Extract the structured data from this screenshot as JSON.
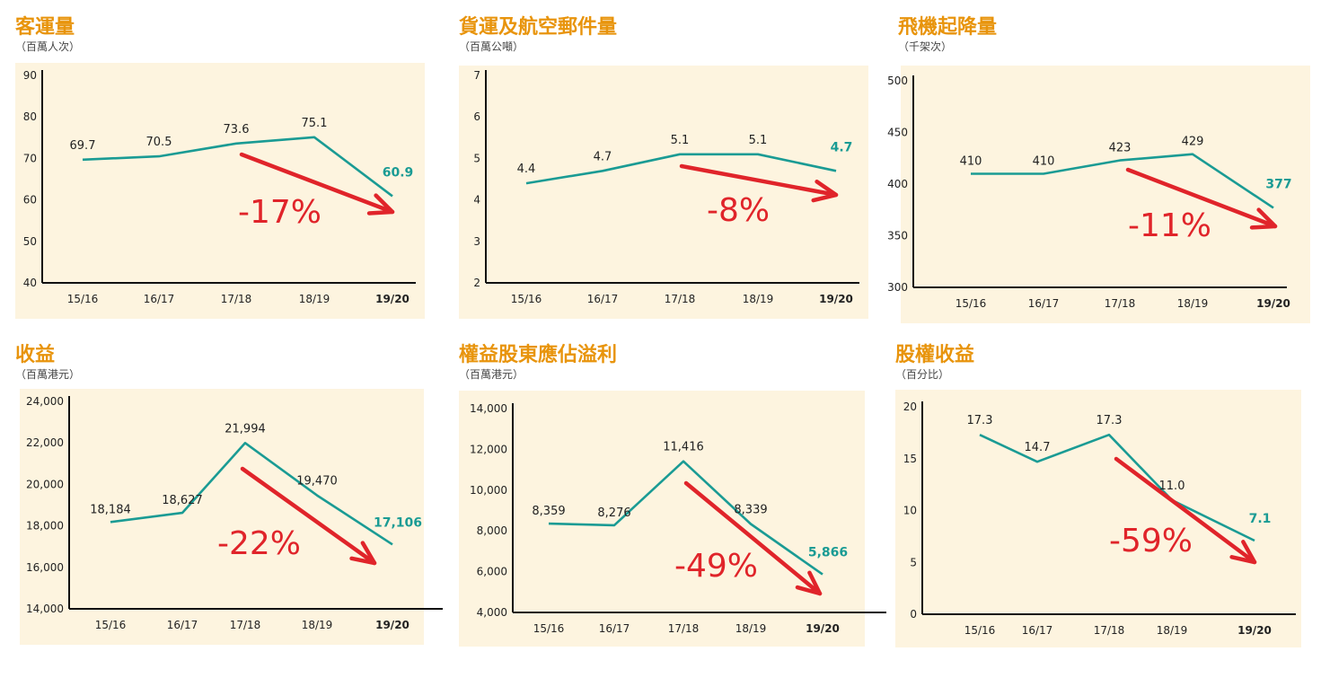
{
  "chart_data": [
    {
      "type": "line",
      "title": "客運量",
      "unit": "（百萬人次）",
      "categories": [
        "15/16",
        "16/17",
        "17/18",
        "18/19",
        "19/20"
      ],
      "values": [
        69.7,
        70.5,
        73.6,
        75.1,
        60.9
      ],
      "value_labels": [
        "69.7",
        "70.5",
        "73.6",
        "75.1",
        "60.9"
      ],
      "ylim": [
        40,
        90
      ],
      "yticks": [
        40,
        50,
        60,
        70,
        80,
        90
      ],
      "ytick_labels": [
        "40",
        "50",
        "60",
        "70",
        "80",
        "90"
      ],
      "change_label": "-17%",
      "line_color": "#1a9b94",
      "arrow_color": "#e0242a"
    },
    {
      "type": "line",
      "title": "貨運及航空郵件量",
      "unit": "（百萬公噸）",
      "categories": [
        "15/16",
        "16/17",
        "17/18",
        "18/19",
        "19/20"
      ],
      "values": [
        4.4,
        4.7,
        5.1,
        5.1,
        4.7
      ],
      "value_labels": [
        "4.4",
        "4.7",
        "5.1",
        "5.1",
        "4.7"
      ],
      "ylim": [
        2,
        7
      ],
      "yticks": [
        2,
        3,
        4,
        5,
        6,
        7
      ],
      "ytick_labels": [
        "2",
        "3",
        "4",
        "5",
        "6",
        "7"
      ],
      "change_label": "-8%",
      "line_color": "#1a9b94",
      "arrow_color": "#e0242a"
    },
    {
      "type": "line",
      "title": "飛機起降量",
      "unit": "（千架次）",
      "categories": [
        "15/16",
        "16/17",
        "17/18",
        "18/19",
        "19/20"
      ],
      "values": [
        410,
        410,
        423,
        429,
        377
      ],
      "value_labels": [
        "410",
        "410",
        "423",
        "429",
        "377"
      ],
      "ylim": [
        300,
        500
      ],
      "yticks": [
        300,
        350,
        400,
        450,
        500
      ],
      "ytick_labels": [
        "300",
        "350",
        "400",
        "450",
        "500"
      ],
      "change_label": "-11%",
      "line_color": "#1a9b94",
      "arrow_color": "#e0242a"
    },
    {
      "type": "line",
      "title": "收益",
      "unit": "（百萬港元）",
      "categories": [
        "15/16",
        "16/17",
        "17/18",
        "18/19",
        "19/20"
      ],
      "values": [
        18184,
        18627,
        21994,
        19470,
        17106
      ],
      "value_labels": [
        "18,184",
        "18,627",
        "21,994",
        "19,470",
        "17,106"
      ],
      "ylim": [
        14000,
        24000
      ],
      "yticks": [
        14000,
        16000,
        18000,
        20000,
        22000,
        24000
      ],
      "ytick_labels": [
        "14,000",
        "16,000",
        "18,000",
        "20,000",
        "22,000",
        "24,000"
      ],
      "change_label": "-22%",
      "line_color": "#1a9b94",
      "arrow_color": "#e0242a"
    },
    {
      "type": "line",
      "title": "權益股東應佔溢利",
      "unit": "（百萬港元）",
      "categories": [
        "15/16",
        "16/17",
        "17/18",
        "18/19",
        "19/20"
      ],
      "values": [
        8359,
        8276,
        11416,
        8339,
        5866
      ],
      "value_labels": [
        "8,359",
        "8,276",
        "11,416",
        "8,339",
        "5,866"
      ],
      "ylim": [
        4000,
        14000
      ],
      "yticks": [
        4000,
        6000,
        8000,
        10000,
        12000,
        14000
      ],
      "ytick_labels": [
        "4,000",
        "6,000",
        "8,000",
        "10,000",
        "12,000",
        "14,000"
      ],
      "change_label": "-49%",
      "line_color": "#1a9b94",
      "arrow_color": "#e0242a"
    },
    {
      "type": "line",
      "title": "股權收益",
      "unit": "（百分比）",
      "categories": [
        "15/16",
        "16/17",
        "17/18",
        "18/19",
        "19/20"
      ],
      "values": [
        17.3,
        14.7,
        17.3,
        11.0,
        7.1
      ],
      "value_labels": [
        "17.3",
        "14.7",
        "17.3",
        "11.0",
        "7.1"
      ],
      "ylim": [
        0,
        20
      ],
      "yticks": [
        0,
        5,
        10,
        15,
        20
      ],
      "ytick_labels": [
        "0",
        "5",
        "10",
        "15",
        "20"
      ],
      "change_label": "-59%",
      "line_color": "#1a9b94",
      "arrow_color": "#e0242a"
    }
  ]
}
